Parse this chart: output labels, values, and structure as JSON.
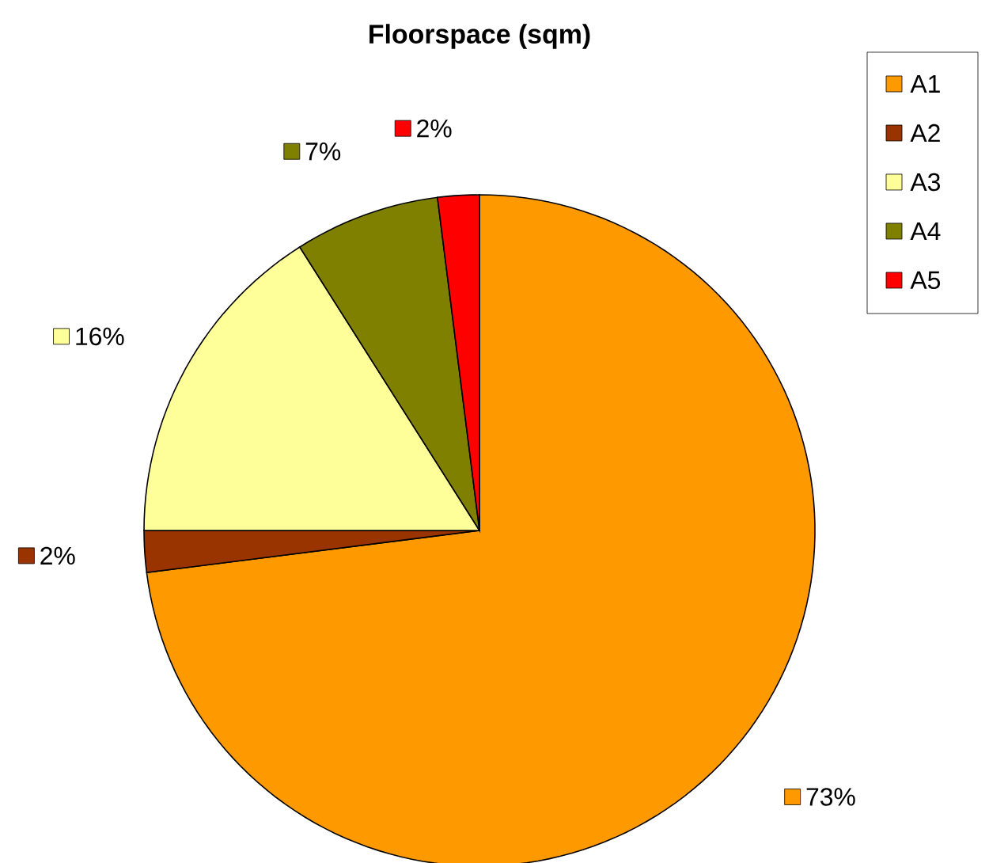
{
  "chart_data": {
    "type": "pie",
    "title": "Floorspace (sqm)",
    "categories": [
      "A1",
      "A2",
      "A3",
      "A4",
      "A5"
    ],
    "values": [
      73,
      2,
      16,
      7,
      2
    ],
    "colors": [
      "#ff9900",
      "#993300",
      "#ffff99",
      "#808000",
      "#ff0000"
    ],
    "value_labels": [
      "73%",
      "2%",
      "16%",
      "7%",
      "2%"
    ],
    "legend": "top right"
  }
}
